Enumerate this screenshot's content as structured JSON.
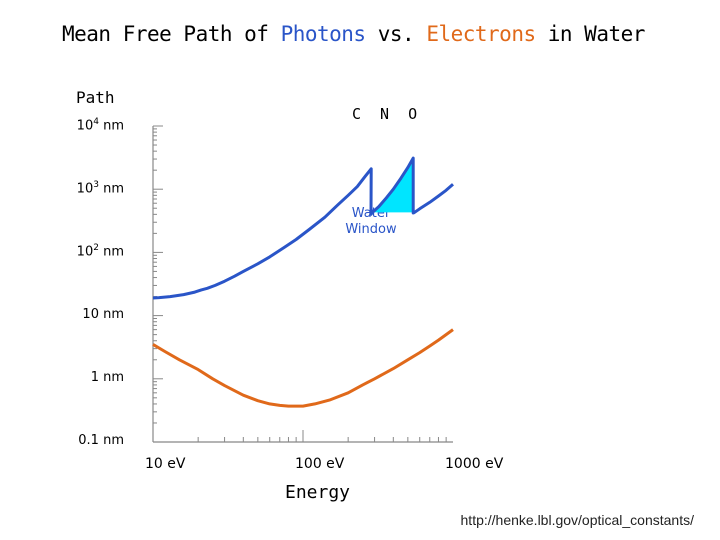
{
  "title_parts": {
    "a": "Mean Free Path of ",
    "b": "Photons",
    "c": " vs. ",
    "d": "Electrons",
    "e": " in Water"
  },
  "edge_labels": "C N O",
  "source": "http://henke.lbl.gov/optical_constants/",
  "chart_data": {
    "type": "line",
    "title": "Mean Free Path of Photons vs. Electrons in Water",
    "ylabel": "Path",
    "xlabel": "Energy",
    "xscale": "log",
    "yscale": "log",
    "xlim": [
      10,
      1000
    ],
    "ylim": [
      0.1,
      10000
    ],
    "x_ticks": [
      {
        "value": 10,
        "label": "10 eV"
      },
      {
        "value": 100,
        "label": "100 eV"
      },
      {
        "value": 1000,
        "label": "1000 eV"
      }
    ],
    "y_ticks": [
      {
        "value": 10000,
        "base": "10",
        "exp": "4",
        "unit": " nm"
      },
      {
        "value": 1000,
        "base": "10",
        "exp": "3",
        "unit": " nm"
      },
      {
        "value": 100,
        "base": "10",
        "exp": "2",
        "unit": " nm"
      },
      {
        "value": 10,
        "base": "10 nm",
        "exp": "",
        "unit": ""
      },
      {
        "value": 1,
        "base": "1 nm",
        "exp": "",
        "unit": ""
      },
      {
        "value": 0.1,
        "base": "0.1 nm",
        "exp": "",
        "unit": ""
      }
    ],
    "series": [
      {
        "key": "photons",
        "color": "#2a55c8",
        "x": [
          10,
          11,
          13,
          16,
          19,
          21,
          23,
          26,
          30,
          35,
          40,
          50,
          60,
          75,
          90,
          110,
          140,
          170,
          200,
          230,
          260,
          285,
          284,
          290,
          320,
          360,
          400,
          450,
          500,
          543,
          543,
          550,
          600,
          700,
          800,
          900,
          1000
        ],
        "y": [
          19,
          19.3,
          20,
          21.5,
          23.5,
          25.5,
          27,
          30,
          35,
          42,
          50,
          66,
          85,
          120,
          160,
          230,
          360,
          560,
          800,
          1100,
          1600,
          2100,
          400,
          430,
          530,
          730,
          1000,
          1500,
          2200,
          3100,
          420,
          425,
          490,
          620,
          780,
          960,
          1200
        ]
      },
      {
        "key": "electrons",
        "color": "#e0691a",
        "x": [
          10,
          12,
          15,
          20,
          25,
          30,
          40,
          50,
          60,
          70,
          80,
          100,
          120,
          150,
          200,
          250,
          300,
          400,
          500,
          600,
          700,
          800,
          900,
          1000
        ],
        "y": [
          3.5,
          2.7,
          2.0,
          1.4,
          1.0,
          0.78,
          0.55,
          0.45,
          0.4,
          0.38,
          0.37,
          0.37,
          0.4,
          0.46,
          0.6,
          0.8,
          1.0,
          1.45,
          2.0,
          2.6,
          3.3,
          4.1,
          5.0,
          6.0
        ]
      }
    ],
    "annotations": [
      {
        "label": "Water Window",
        "x_range": [
          284,
          543
        ]
      }
    ]
  }
}
